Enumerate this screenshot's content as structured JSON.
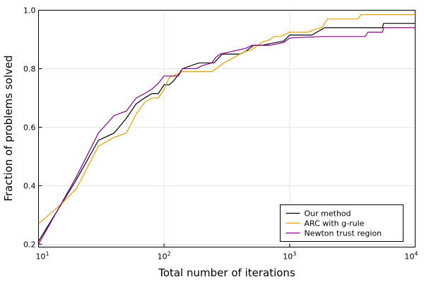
{
  "chart_data": {
    "type": "line",
    "xlabel": "Total number of iterations",
    "ylabel": "Fraction of problems solved",
    "xscale": "log",
    "xlim": [
      10,
      10000
    ],
    "ylim": [
      0.19,
      1.0
    ],
    "x_ticks": [
      {
        "value": 10,
        "base": "10",
        "exp": "1"
      },
      {
        "value": 100,
        "base": "10",
        "exp": "2"
      },
      {
        "value": 1000,
        "base": "10",
        "exp": "3"
      },
      {
        "value": 10000,
        "base": "10",
        "exp": "4"
      }
    ],
    "y_ticks": [
      {
        "value": 0.2,
        "label": "0.2"
      },
      {
        "value": 0.4,
        "label": "0.4"
      },
      {
        "value": 0.6,
        "label": "0.6"
      },
      {
        "value": 0.8,
        "label": "0.8"
      },
      {
        "value": 1.0,
        "label": "1.0"
      }
    ],
    "grid": true,
    "legend_position": "bottom-right",
    "series": [
      {
        "name": "Our method",
        "color": "#000000",
        "points": [
          [
            10,
            0.21
          ],
          [
            20,
            0.42
          ],
          [
            30,
            0.555
          ],
          [
            40,
            0.58
          ],
          [
            50,
            0.63
          ],
          [
            60,
            0.68
          ],
          [
            70,
            0.7
          ],
          [
            80,
            0.715
          ],
          [
            90,
            0.715
          ],
          [
            100,
            0.745
          ],
          [
            110,
            0.745
          ],
          [
            120,
            0.76
          ],
          [
            130,
            0.78
          ],
          [
            140,
            0.8
          ],
          [
            190,
            0.82
          ],
          [
            250,
            0.82
          ],
          [
            270,
            0.835
          ],
          [
            290,
            0.85
          ],
          [
            400,
            0.85
          ],
          [
            450,
            0.86
          ],
          [
            480,
            0.87
          ],
          [
            520,
            0.88
          ],
          [
            600,
            0.88
          ],
          [
            900,
            0.895
          ],
          [
            1000,
            0.915
          ],
          [
            1500,
            0.915
          ],
          [
            1900,
            0.94
          ],
          [
            5500,
            0.94
          ],
          [
            5600,
            0.955
          ],
          [
            10000,
            0.955
          ]
        ]
      },
      {
        "name": "ARC with g-rule",
        "color": "#e69f00",
        "points": [
          [
            10,
            0.27
          ],
          [
            15,
            0.335
          ],
          [
            20,
            0.39
          ],
          [
            30,
            0.535
          ],
          [
            40,
            0.565
          ],
          [
            50,
            0.58
          ],
          [
            60,
            0.645
          ],
          [
            70,
            0.685
          ],
          [
            80,
            0.7
          ],
          [
            90,
            0.7
          ],
          [
            100,
            0.73
          ],
          [
            110,
            0.77
          ],
          [
            140,
            0.79
          ],
          [
            240,
            0.79
          ],
          [
            260,
            0.8
          ],
          [
            300,
            0.82
          ],
          [
            350,
            0.835
          ],
          [
            420,
            0.855
          ],
          [
            500,
            0.865
          ],
          [
            600,
            0.89
          ],
          [
            700,
            0.9
          ],
          [
            750,
            0.91
          ],
          [
            850,
            0.91
          ],
          [
            1000,
            0.925
          ],
          [
            1400,
            0.925
          ],
          [
            1600,
            0.935
          ],
          [
            1800,
            0.94
          ],
          [
            1900,
            0.955
          ],
          [
            2000,
            0.97
          ],
          [
            3500,
            0.97
          ],
          [
            3700,
            0.985
          ],
          [
            10000,
            0.985
          ]
        ]
      },
      {
        "name": "Newton trust region",
        "color": "#8b008b",
        "points": [
          [
            10,
            0.2
          ],
          [
            20,
            0.43
          ],
          [
            30,
            0.58
          ],
          [
            40,
            0.64
          ],
          [
            50,
            0.655
          ],
          [
            60,
            0.7
          ],
          [
            70,
            0.715
          ],
          [
            80,
            0.73
          ],
          [
            90,
            0.75
          ],
          [
            100,
            0.775
          ],
          [
            130,
            0.775
          ],
          [
            140,
            0.8
          ],
          [
            180,
            0.8
          ],
          [
            200,
            0.81
          ],
          [
            240,
            0.82
          ],
          [
            260,
            0.84
          ],
          [
            280,
            0.85
          ],
          [
            450,
            0.87
          ],
          [
            500,
            0.88
          ],
          [
            700,
            0.88
          ],
          [
            900,
            0.89
          ],
          [
            1000,
            0.905
          ],
          [
            1800,
            0.91
          ],
          [
            4000,
            0.91
          ],
          [
            4200,
            0.925
          ],
          [
            5500,
            0.925
          ],
          [
            5600,
            0.94
          ],
          [
            10000,
            0.94
          ]
        ]
      }
    ]
  }
}
